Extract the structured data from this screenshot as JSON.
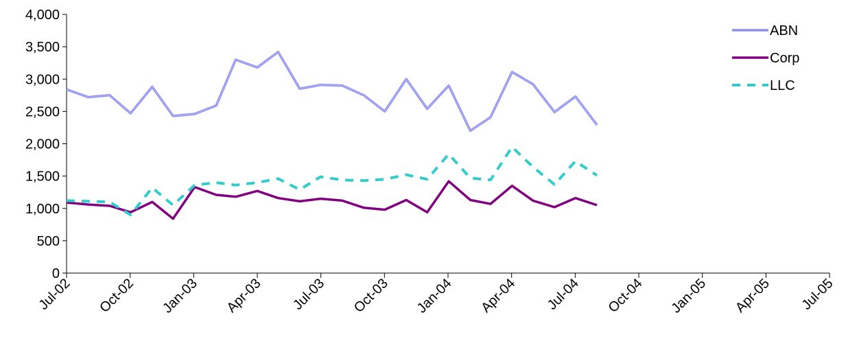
{
  "chart_data": {
    "type": "line",
    "title": "",
    "xlabel": "",
    "ylabel": "",
    "ylim": [
      0,
      4000
    ],
    "y_ticks": [
      "0",
      "500",
      "1,000",
      "1,500",
      "2,000",
      "2,500",
      "3,000",
      "3,500",
      "4,000"
    ],
    "x_ticks": [
      "Jul-02",
      "Oct-02",
      "Jan-03",
      "Apr-03",
      "Jul-03",
      "Oct-03",
      "Jan-04",
      "Apr-04",
      "Jul-04",
      "Oct-04",
      "Jan-05",
      "Apr-05",
      "Jul-05"
    ],
    "x_range": [
      "2002-07-01",
      "2005-07-01"
    ],
    "grid": false,
    "legend_position": "right",
    "dates": [
      "2002-07-01",
      "2002-08-01",
      "2002-09-01",
      "2002-10-01",
      "2002-11-01",
      "2002-12-01",
      "2003-01-01",
      "2003-02-01",
      "2003-03-01",
      "2003-04-01",
      "2003-05-01",
      "2003-06-01",
      "2003-07-01",
      "2003-08-01",
      "2003-09-01",
      "2003-10-01",
      "2003-11-01",
      "2003-12-01",
      "2004-01-01",
      "2004-02-01",
      "2004-03-01",
      "2004-04-01",
      "2004-05-01",
      "2004-06-01",
      "2004-07-01",
      "2004-08-01"
    ],
    "series": [
      {
        "name": "ABN",
        "color": "#8f8fef",
        "style": "thick-solid",
        "values": [
          2840,
          2720,
          2750,
          2470,
          2880,
          2430,
          2460,
          2590,
          3300,
          3180,
          3420,
          2850,
          2910,
          2900,
          2750,
          2500,
          3000,
          2540,
          2900,
          2200,
          2410,
          3110,
          2920,
          2490,
          2730,
          2290
        ]
      },
      {
        "name": "Corp",
        "color": "#800080",
        "style": "solid",
        "values": [
          1090,
          1060,
          1040,
          940,
          1100,
          840,
          1330,
          1210,
          1180,
          1270,
          1160,
          1110,
          1150,
          1120,
          1010,
          980,
          1130,
          940,
          1420,
          1130,
          1070,
          1350,
          1120,
          1020,
          1160,
          1050
        ]
      },
      {
        "name": "LLC",
        "color": "#33cccc",
        "style": "dashed",
        "values": [
          1120,
          1110,
          1100,
          900,
          1320,
          1050,
          1360,
          1400,
          1360,
          1400,
          1460,
          1290,
          1490,
          1440,
          1430,
          1450,
          1520,
          1450,
          1840,
          1470,
          1440,
          1950,
          1640,
          1370,
          1730,
          1510
        ]
      }
    ]
  }
}
